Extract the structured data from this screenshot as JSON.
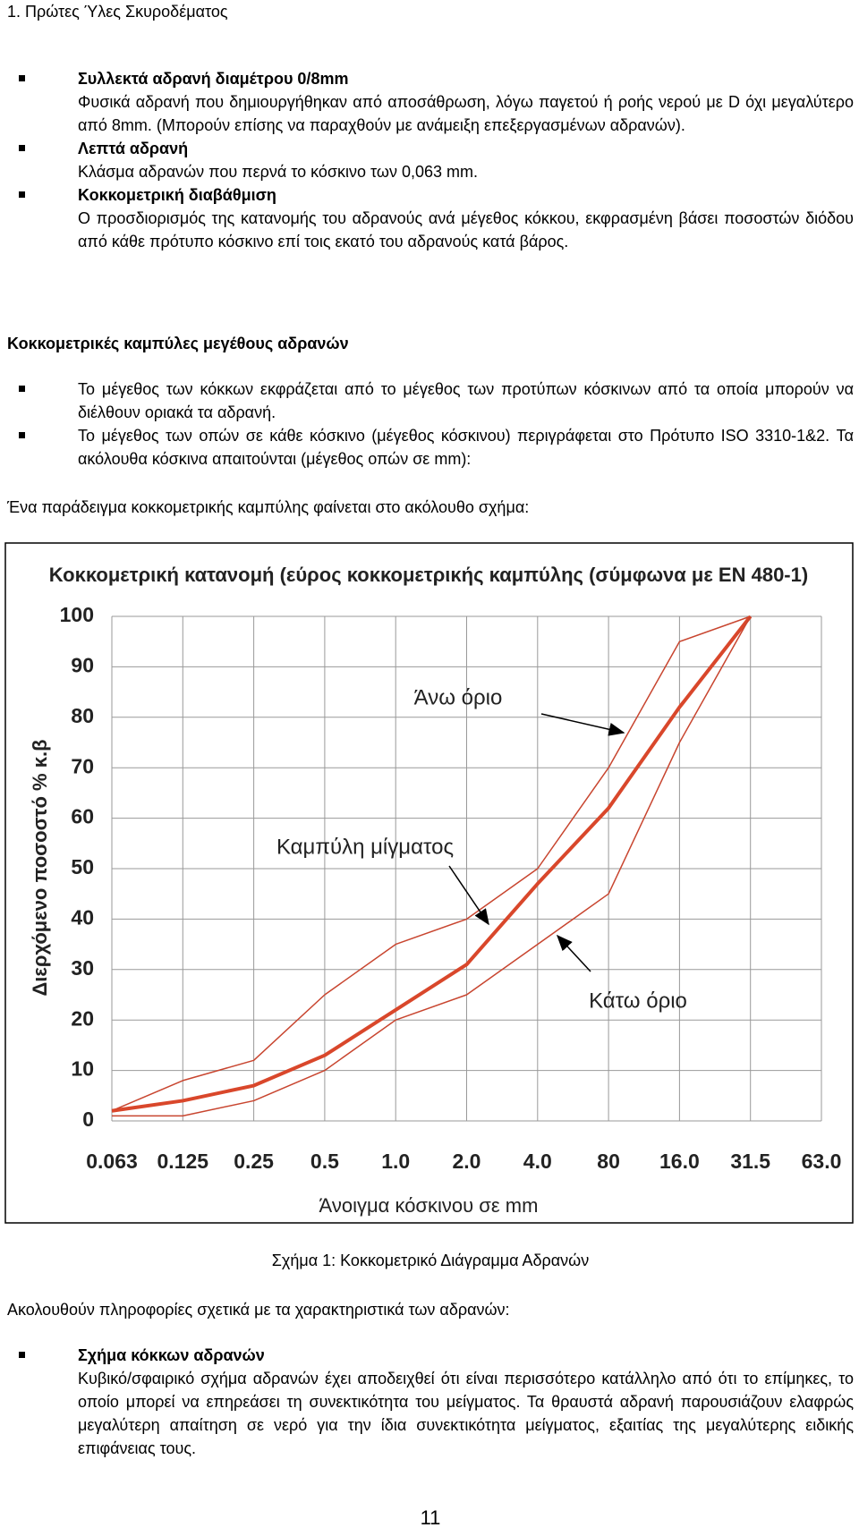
{
  "header": "1. Πρώτες Ύλες Σκυροδέματος",
  "list1": [
    {
      "title": "Συλλεκτά αδρανή διαμέτρου 0/8mm",
      "text": "Φυσικά αδρανή που δημιουργήθηκαν από αποσάθρωση, λόγω παγετού ή ροής νερού με D όχι μεγαλύτερο από 8mm. (Μπορούν επίσης να παραχθούν με ανάμειξη επεξεργασμένων αδρανών)."
    },
    {
      "title": "Λεπτά αδρανή",
      "text": "Κλάσμα αδρανών που περνά το κόσκινο των 0,063 mm."
    },
    {
      "title": "Κοκκομετρική διαβάθμιση",
      "text": "Ο προσδιορισμός της κατανομής του αδρανούς ανά μέγεθος κόκκου, εκφρασμένη βάσει ποσοστών διόδου από κάθε πρότυπο κόσκινο επί τοις εκατό του αδρανούς κατά βάρος."
    }
  ],
  "heading": "Κοκκομετρικές καμπύλες μεγέθους αδρανών",
  "list2": [
    "Το μέγεθος των κόκκων εκφράζεται από το μέγεθος των προτύπων κόσκινων από τα οποία μπορούν να διέλθουν οριακά τα αδρανή.",
    "Το μέγεθος των οπών σε κάθε κόσκινο (μέγεθος κόσκινου) περιγράφεται στο Πρότυπο ISO 3310-1&2. Τα ακόλουθα κόσκινα απαιτούνται (μέγεθος οπών σε mm):"
  ],
  "intro": "Ένα παράδειγμα κοκκομετρικής καμπύλης φαίνεται στο ακόλουθο σχήμα:",
  "chart_data": {
    "type": "line",
    "title": "Κοκκομετρική κατανομή (εύρος κοκκομετρικής καμπύλης (σύμφωνα με ΕΝ 480-1)",
    "xlabel": "Άνοιγμα κόσκινου σε mm",
    "ylabel": "Διερχόμενο ποσοστό % κ.β",
    "categories": [
      "0.063",
      "0.125",
      "0.25",
      "0.5",
      "1.0",
      "2.0",
      "4.0",
      "80",
      "16.0",
      "31.5",
      "63.0"
    ],
    "series": [
      {
        "name": "Άνω όριο",
        "color": "#c8452f",
        "width": 1.5,
        "values": [
          2,
          8,
          12,
          25,
          35,
          40,
          50,
          70,
          95,
          100,
          null
        ]
      },
      {
        "name": "Καμπύλη μίγματος",
        "color": "#d9472b",
        "width": 4,
        "values": [
          2,
          4,
          7,
          13,
          22,
          31,
          47,
          62,
          82,
          100,
          null
        ]
      },
      {
        "name": "Κάτω όριο",
        "color": "#c8452f",
        "width": 1.5,
        "values": [
          1,
          1,
          4,
          10,
          20,
          25,
          35,
          45,
          75,
          100,
          null
        ]
      }
    ],
    "ylim": [
      0,
      100
    ],
    "yticks": [
      0,
      10,
      20,
      30,
      40,
      50,
      60,
      70,
      80,
      90,
      100
    ],
    "grid": true
  },
  "caption": "Σχήμα 1: Κοκκομετρικό Διάγραμμα Αδρανών",
  "lead": "Ακολουθούν πληροφορίες σχετικά με τα χαρακτηριστικά των αδρανών:",
  "list3": [
    {
      "title": "Σχήμα κόκκων αδρανών",
      "text": "Κυβικό/σφαιρικό σχήμα αδρανών έχει αποδειχθεί ότι είναι περισσότερο κατάλληλο από ότι το επίμηκες, το οποίο μπορεί να επηρεάσει τη συνεκτικότητα του μείγματος. Τα θραυστά αδρανή παρουσιάζουν ελαφρώς μεγαλύτερη απαίτηση σε νερό για την ίδια συνεκτικότητα μείγματος, εξαιτίας της μεγαλύτερης ειδικής επιφάνειας τους."
    }
  ],
  "page_number": "11"
}
